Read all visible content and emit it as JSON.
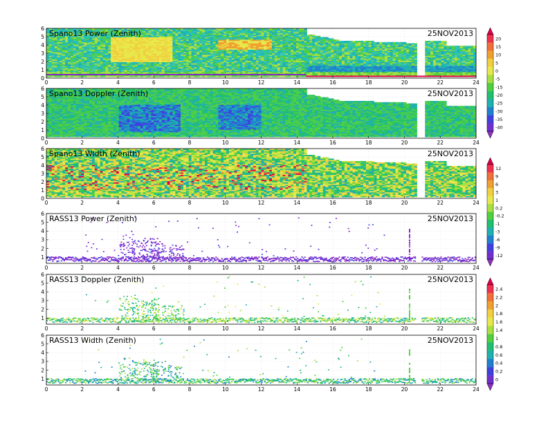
{
  "chart_data": [
    {
      "type": "heatmap",
      "title": "Spano13 Power (Zenith)",
      "date": "25NOV2013",
      "x_ticks": [
        "0",
        "2",
        "4",
        "6",
        "8",
        "10",
        "12",
        "14",
        "16",
        "18",
        "20",
        "22",
        "24"
      ],
      "y_ticks": [
        "0",
        "1",
        "2",
        "3",
        "4",
        "5",
        "6"
      ],
      "xlim": [
        0,
        24
      ],
      "ylim": [
        0,
        6
      ],
      "colorbar": 0
    },
    {
      "type": "heatmap",
      "title": "Spano13 Doppler (Zenith)",
      "date": "25NOV2013",
      "x_ticks": [
        "0",
        "2",
        "4",
        "6",
        "8",
        "10",
        "12",
        "14",
        "16",
        "18",
        "20",
        "22",
        "24"
      ],
      "y_ticks": [
        "0",
        "1",
        "2",
        "3",
        "4",
        "5",
        "6"
      ],
      "xlim": [
        0,
        24
      ],
      "ylim": [
        0,
        6
      ],
      "colorbar": null
    },
    {
      "type": "heatmap",
      "title": "Spano13 Width (Zenith)",
      "date": "25NOV2013",
      "x_ticks": [
        "0",
        "2",
        "4",
        "6",
        "8",
        "10",
        "12",
        "14",
        "16",
        "18",
        "20",
        "22",
        "24"
      ],
      "y_ticks": [
        "0",
        "1",
        "2",
        "3",
        "4",
        "5",
        "6"
      ],
      "xlim": [
        0,
        24
      ],
      "ylim": [
        0,
        6
      ],
      "colorbar": 1
    },
    {
      "type": "heatmap",
      "title": "RASS13 Power (Zenith)",
      "date": "25NOV2013",
      "x_ticks": [
        "0",
        "2",
        "4",
        "6",
        "8",
        "10",
        "12",
        "14",
        "16",
        "18",
        "20",
        "22",
        "24"
      ],
      "y_ticks": [
        "1",
        "2",
        "3",
        "4",
        "5",
        "6"
      ],
      "xlim": [
        0,
        24
      ],
      "ylim": [
        0.3,
        6
      ],
      "colorbar": null
    },
    {
      "type": "heatmap",
      "title": "RASS13 Doppler (Zenith)",
      "date": "25NOV2013",
      "x_ticks": [
        "0",
        "2",
        "4",
        "6",
        "8",
        "10",
        "12",
        "14",
        "16",
        "18",
        "20",
        "22",
        "24"
      ],
      "y_ticks": [
        "1",
        "2",
        "3",
        "4",
        "5",
        "6"
      ],
      "xlim": [
        0,
        24
      ],
      "ylim": [
        0.3,
        6
      ],
      "colorbar": 2
    },
    {
      "type": "heatmap",
      "title": "RASS13 Width (Zenith)",
      "date": "25NOV2013",
      "x_ticks": [
        "0",
        "2",
        "4",
        "6",
        "8",
        "10",
        "12",
        "14",
        "16",
        "18",
        "20",
        "22",
        "24"
      ],
      "y_ticks": [
        "1",
        "2",
        "3",
        "4",
        "5",
        "6"
      ],
      "xlim": [
        0,
        24
      ],
      "ylim": [
        0.3,
        6
      ],
      "colorbar": null
    }
  ],
  "colorbars": [
    {
      "labels": [
        "20",
        "15",
        "10",
        "5",
        "0",
        "-5",
        "-15",
        "-20",
        "-25",
        "-30",
        "-35",
        "-40"
      ],
      "colors": [
        "#e0004a",
        "#f03050",
        "#f07038",
        "#f0a030",
        "#f0d040",
        "#e8e84a",
        "#a8e040",
        "#50d040",
        "#20c070",
        "#20b0b0",
        "#2080d0",
        "#4040e0",
        "#7030d0",
        "#9030c0"
      ]
    },
    {
      "labels": [
        "12",
        "9",
        "6",
        "3",
        "1",
        "0.2",
        "-0.2",
        "-1",
        "-3",
        "-6",
        "-9",
        "-12"
      ],
      "colors": [
        "#e0004a",
        "#f03050",
        "#f07038",
        "#f0a030",
        "#f0d040",
        "#e8e84a",
        "#a8e040",
        "#50d040",
        "#20c070",
        "#20b0b0",
        "#2080d0",
        "#4040e0",
        "#7030d0",
        "#9030c0"
      ]
    },
    {
      "labels": [
        "2.4",
        "2.2",
        "2",
        "1.8",
        "1.6",
        "1.4",
        "1",
        "0.8",
        "0.6",
        "0.4",
        "0.2",
        "0"
      ],
      "colors": [
        "#e0004a",
        "#f03050",
        "#f07038",
        "#f0a030",
        "#f0d040",
        "#e8e84a",
        "#a8e040",
        "#50d040",
        "#20c070",
        "#20b0b0",
        "#2080d0",
        "#4040e0",
        "#7030d0",
        "#9030c0"
      ]
    }
  ]
}
